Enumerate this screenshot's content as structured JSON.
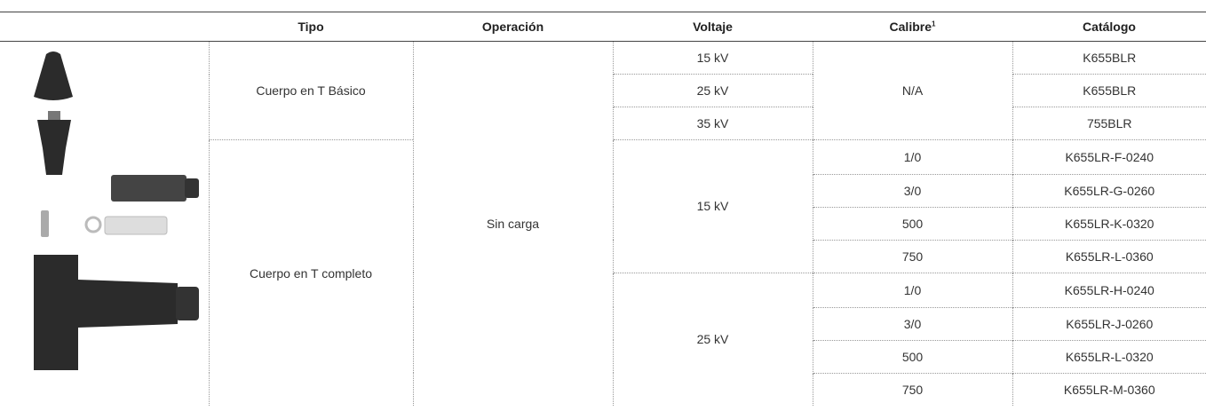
{
  "table": {
    "headers": [
      "Tipo",
      "Operación",
      "Voltaje",
      "Calibre",
      "Catálogo"
    ],
    "header_note": "1",
    "operacion": "Sin carga",
    "groups": [
      {
        "tipo": "Cuerpo en T Básico",
        "calibre": "N/A",
        "rows": [
          {
            "voltaje": "15 kV",
            "catalogo": "K655BLR"
          },
          {
            "voltaje": "25 kV",
            "catalogo": "K655BLR"
          },
          {
            "voltaje": "35 kV",
            "catalogo": "755BLR"
          }
        ]
      },
      {
        "tipo": "Cuerpo en T completo",
        "voltajes": [
          {
            "voltaje": "15 kV",
            "rows": [
              {
                "calibre": "1/0",
                "catalogo": "K655LR-F-0240"
              },
              {
                "calibre": "3/0",
                "catalogo": "K655LR-G-0260"
              },
              {
                "calibre": "500",
                "catalogo": "K655LR-K-0320"
              },
              {
                "calibre": "750",
                "catalogo": "K655LR-L-0360"
              }
            ]
          },
          {
            "voltaje": "25 kV",
            "rows": [
              {
                "calibre": "1/0",
                "catalogo": "K655LR-H-0240"
              },
              {
                "calibre": "3/0",
                "catalogo": "K655LR-J-0260"
              },
              {
                "calibre": "500",
                "catalogo": "K655LR-L-0320"
              },
              {
                "calibre": "750",
                "catalogo": "K655LR-M-0360"
              }
            ]
          }
        ]
      }
    ]
  }
}
